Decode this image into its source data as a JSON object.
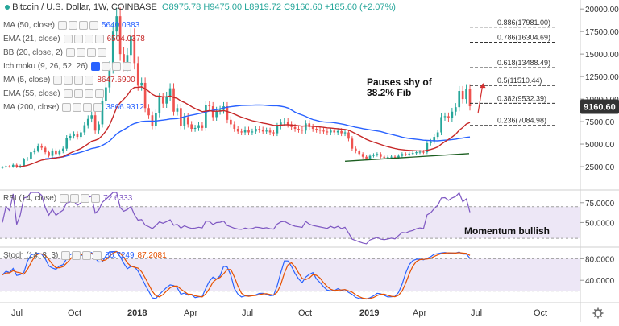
{
  "header": {
    "symbol": "Bitcoin / U.S. Dollar",
    "interval": "1W",
    "exchange": "COINBASE",
    "open": "O8975.78",
    "high": "H9475.00",
    "low": "L8919.72",
    "close": "C9160.60",
    "change": "+185.60 (+2.07%)"
  },
  "indicators": [
    {
      "label": "MA (50, close)",
      "value": "5640.0383",
      "color": "#2962ff"
    },
    {
      "label": "EMA (21, close)",
      "value": "6504.0378",
      "color": "#c62828"
    },
    {
      "label": "BB (20, close, 2)",
      "value": "",
      "color": "#2962ff"
    },
    {
      "label": "Ichimoku (9, 26, 52, 26)",
      "value": "",
      "color": "#2962ff"
    },
    {
      "label": "MA (5, close)",
      "value": "8647.6900",
      "color": "#c62828"
    },
    {
      "label": "EMA (55, close)",
      "value": "",
      "color": "#2962ff"
    },
    {
      "label": "MA (200, close)",
      "value": "3866.9312",
      "color": "#2962ff"
    }
  ],
  "annotations": {
    "fib_note_line1": "Pauses shy of",
    "fib_note_line2": "38.2% Fib",
    "rsi_note": "Momentum bullish"
  },
  "fib_levels": [
    {
      "label": "0.886(17981.00)",
      "price": 17981
    },
    {
      "label": "0.786(16304.69)",
      "price": 16304.69
    },
    {
      "label": "0.618(13488.49)",
      "price": 13488.49
    },
    {
      "label": "0.5(11510.44)",
      "price": 11510.44
    },
    {
      "label": "0.382(9532.39)",
      "price": 9532.39
    },
    {
      "label": "0.236(7084.98)",
      "price": 7084.98
    }
  ],
  "last_price_label": "9160.60",
  "rsi_legend": {
    "label": "RSI (14, close)",
    "value": "72.6333"
  },
  "stoch_legend": {
    "label": "Stoch (14, 3, 3)",
    "k": "86.7249",
    "d": "87.2081"
  },
  "colors": {
    "up": "#26a69a",
    "down": "#ef5350",
    "ma50": "#2962ff",
    "ema21": "#c62828",
    "trend": "#1b5e20",
    "rsi": "#7e57c2",
    "band": "#ede7f6",
    "stoch_k": "#2962ff",
    "stoch_d": "#e65100",
    "arrow": "#d32f2f"
  },
  "chart_data": [
    {
      "type": "candlestick",
      "title": "",
      "xlabel": "",
      "ylabel": "",
      "x_tick_labels": [
        "Jul",
        "Oct",
        "2018",
        "Apr",
        "Jul",
        "Oct",
        "2019",
        "Apr",
        "Jul",
        "Oct"
      ],
      "y_tick_labels": [
        "20000.00",
        "17500.00",
        "15000.00",
        "12500.00",
        "10000.00",
        "7500.00",
        "5000.00",
        "2500.00"
      ],
      "ylim": [
        0,
        21000
      ],
      "close_series": [
        2450,
        2550,
        2500,
        2700,
        2450,
        2600,
        3300,
        3400,
        4100,
        4300,
        4800,
        4600,
        4100,
        3700,
        4300,
        3900,
        4200,
        4500,
        5700,
        5900,
        6100,
        5800,
        6300,
        7100,
        7800,
        8200,
        6500,
        7200,
        9800,
        11300,
        13500,
        17500,
        19200,
        15000,
        13800,
        14900,
        17000,
        14000,
        11500,
        11800,
        9000,
        8200,
        7000,
        8400,
        10200,
        9500,
        10300,
        11200,
        8600,
        9000,
        7000,
        8000,
        7200,
        6700,
        6800,
        7100,
        6800,
        9300,
        9200,
        8000,
        8700,
        8800,
        9200,
        7700,
        7200,
        6700,
        6400,
        6300,
        6600,
        6300,
        6400,
        6700,
        6600,
        6400,
        6500,
        6300,
        6200,
        7000,
        7400,
        7500,
        7200,
        6900,
        6700,
        6600,
        6500,
        7300,
        6900,
        6700,
        6600,
        6500,
        6400,
        6300,
        6500,
        6300,
        6450,
        6200,
        6300,
        5600,
        4500,
        4200,
        3900,
        3600,
        3400,
        3700,
        3800,
        3900,
        3600,
        3500,
        3550,
        3600,
        3500,
        3700,
        3900,
        3850,
        3950,
        4000,
        4100,
        4150,
        4100,
        5100,
        5300,
        5800,
        6300,
        8000,
        8100,
        7900,
        8600,
        9100,
        10900,
        10000,
        11100,
        9200
      ]
    },
    {
      "type": "line",
      "title": "",
      "series": [
        {
          "name": "",
          "values": []
        }
      ],
      "y_tick_labels": [
        "75.0000",
        "50.0000"
      ],
      "ylim": [
        20,
        90
      ]
    },
    {
      "type": "line",
      "title": "",
      "series": [
        {
          "name": "",
          "values": []
        },
        {
          "name": "",
          "values": []
        }
      ],
      "y_tick_labels": [
        "80.0000",
        "40.0000"
      ],
      "ylim": [
        0,
        100
      ]
    }
  ],
  "settings_icon": "gear-icon"
}
